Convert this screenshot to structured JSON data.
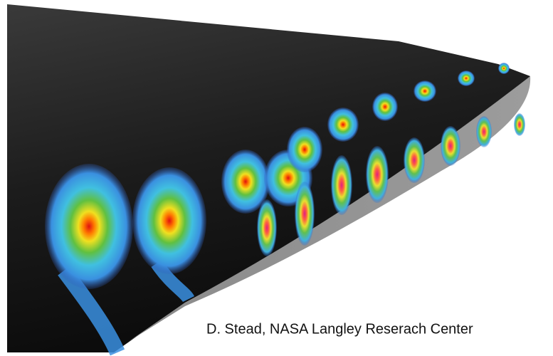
{
  "caption": "D. Stead, NASA Langley Reserach Center"
}
